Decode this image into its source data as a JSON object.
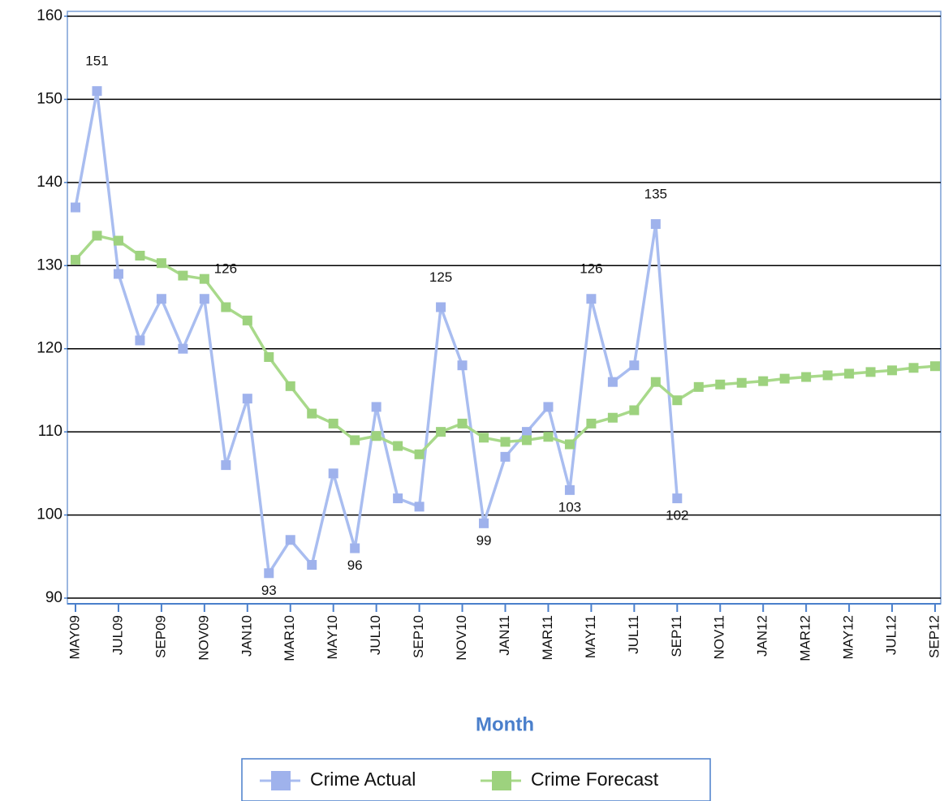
{
  "chart_data": {
    "type": "line",
    "x_axis_label": "Month",
    "categories": [
      "MAY09",
      null,
      "JUL09",
      null,
      "SEP09",
      null,
      "NOV09",
      null,
      "JAN10",
      null,
      "MAR10",
      null,
      "MAY10",
      null,
      "JUL10",
      null,
      "SEP10",
      null,
      "NOV10",
      null,
      "JAN11",
      null,
      "MAR11",
      null,
      "MAY11",
      null,
      "JUL11",
      null,
      "SEP11",
      null,
      "NOV11",
      null,
      "JAN12",
      null,
      "MAR12",
      null,
      "MAY12",
      null,
      "JUL12",
      null,
      "SEP12"
    ],
    "series": [
      {
        "name": "Crime Actual",
        "color": "#a9bdf0",
        "marker_color": "#9fb2ec",
        "values": [
          137,
          151,
          129,
          121,
          126,
          120,
          126,
          106,
          114,
          93,
          97,
          94,
          105,
          96,
          113,
          102,
          101,
          125,
          118,
          99,
          107,
          110,
          113,
          103,
          126,
          116,
          118,
          135,
          102,
          null,
          null,
          null,
          null,
          null,
          null,
          null,
          null,
          null,
          null,
          null,
          null
        ],
        "value_labels": [
          null,
          "151",
          null,
          null,
          null,
          null,
          "126",
          null,
          null,
          "93",
          null,
          null,
          null,
          "96",
          null,
          null,
          null,
          "125",
          null,
          "99",
          null,
          null,
          null,
          "103",
          "126",
          null,
          null,
          "135",
          "102",
          null,
          null,
          null,
          null,
          null,
          null,
          null,
          null,
          null,
          null,
          null,
          null
        ]
      },
      {
        "name": "Crime Forecast",
        "color": "#a8d98a",
        "marker_color": "#9dd27e",
        "values": [
          130.7,
          133.6,
          133,
          131.2,
          130.3,
          128.8,
          128.4,
          125,
          123.4,
          119,
          115.5,
          112.2,
          111,
          109,
          109.5,
          108.3,
          107.3,
          110,
          111,
          109.3,
          108.8,
          109,
          109.4,
          108.5,
          111,
          111.7,
          112.6,
          116,
          113.8,
          115.4,
          115.7,
          115.9,
          116.1,
          116.4,
          116.6,
          116.8,
          117,
          117.2,
          117.4,
          117.7,
          117.9
        ]
      }
    ],
    "ylim": [
      90,
      160
    ],
    "yticks": [
      90,
      100,
      110,
      120,
      130,
      140,
      150,
      160
    ],
    "grid": true
  }
}
